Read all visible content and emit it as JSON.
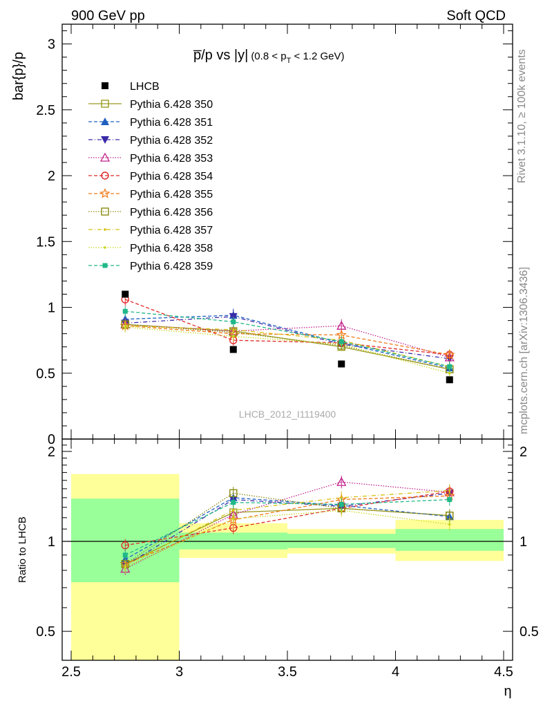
{
  "header": {
    "left": "900 GeV pp",
    "right": "Soft QCD"
  },
  "side_labels": {
    "rivet": "Rivet 3.1.10, ≥ 100k events",
    "mcplots": "mcplots.cern.ch [arXiv:1306.3436]"
  },
  "colors": {
    "LHCB": "#000000",
    "350": "#9a9a20",
    "351": "#1f5fc0",
    "352": "#3a2aa8",
    "353": "#c0208a",
    "354": "#e02828",
    "355": "#f07a18",
    "356": "#8a8a10",
    "357": "#d8c010",
    "358": "#c8d820",
    "359": "#20b888",
    "band_inner": "#99ff99",
    "band_outer": "#ffff99"
  },
  "chart_data": [
    {
      "type": "line",
      "panel": "main",
      "title": "p̅/p vs |y|",
      "title_sub": "(0.8 < p",
      "title_sub_T": "T",
      "title_sub_end": " < 1.2 GeV)",
      "ylabel": "bar{p}/p",
      "watermark": "LHCB_2012_I1119400",
      "xlim": [
        2.5,
        4.5
      ],
      "ylim": [
        0,
        3.15
      ],
      "yticks": [
        0,
        0.5,
        1,
        1.5,
        2,
        2.5,
        3
      ],
      "ytick_labels": [
        "0",
        "0.5",
        "1",
        "1.5",
        "2",
        "2.5",
        "3"
      ],
      "legend_position": "top-left",
      "x": [
        2.75,
        3.25,
        3.75,
        4.25
      ],
      "data": {
        "name": "LHCB",
        "values": [
          1.1,
          0.68,
          0.57,
          0.45
        ],
        "errors": [
          0.01,
          0.01,
          0.01,
          0.01
        ]
      },
      "series": [
        {
          "name": "Pythia 6.428 350",
          "key": "350",
          "marker": "square-open",
          "dash": "solid",
          "values": [
            0.87,
            0.82,
            0.7,
            0.53
          ],
          "errors": [
            0.04,
            0.04,
            0.03,
            0.03
          ]
        },
        {
          "name": "Pythia 6.428 351",
          "key": "351",
          "marker": "triangle-up",
          "dash": "dash",
          "values": [
            0.91,
            0.94,
            0.73,
            0.54
          ],
          "errors": [
            0.04,
            0.05,
            0.04,
            0.04
          ]
        },
        {
          "name": "Pythia 6.428 352",
          "key": "352",
          "marker": "triangle-down",
          "dash": "dashdot",
          "values": [
            0.88,
            0.93,
            0.72,
            0.61
          ],
          "errors": [
            0.04,
            0.05,
            0.04,
            0.04
          ]
        },
        {
          "name": "Pythia 6.428 353",
          "key": "353",
          "marker": "triangle-up-open",
          "dash": "dot",
          "values": [
            0.87,
            0.82,
            0.86,
            0.62
          ],
          "errors": [
            0.05,
            0.05,
            0.05,
            0.05
          ]
        },
        {
          "name": "Pythia 6.428 354",
          "key": "354",
          "marker": "circle-open",
          "dash": "dash",
          "values": [
            1.06,
            0.75,
            0.73,
            0.64
          ],
          "errors": [
            0.05,
            0.04,
            0.04,
            0.04
          ]
        },
        {
          "name": "Pythia 6.428 355",
          "key": "355",
          "marker": "star-open",
          "dash": "dash",
          "values": [
            0.86,
            0.8,
            0.79,
            0.64
          ],
          "errors": [
            0.04,
            0.04,
            0.04,
            0.04
          ]
        },
        {
          "name": "Pythia 6.428 356",
          "key": "356",
          "marker": "square-open",
          "dash": "dot",
          "values": [
            0.87,
            0.81,
            0.71,
            0.53
          ],
          "errors": [
            0.04,
            0.04,
            0.03,
            0.03
          ]
        },
        {
          "name": "Pythia 6.428 357",
          "key": "357",
          "marker": "dot",
          "dash": "dashdot",
          "values": [
            0.86,
            0.83,
            0.75,
            0.55
          ],
          "errors": [
            0.04,
            0.04,
            0.04,
            0.04
          ]
        },
        {
          "name": "Pythia 6.428 358",
          "key": "358",
          "marker": "dot",
          "dash": "dot",
          "values": [
            0.85,
            0.78,
            0.72,
            0.5
          ],
          "errors": [
            0.04,
            0.04,
            0.03,
            0.03
          ]
        },
        {
          "name": "Pythia 6.428 359",
          "key": "359",
          "marker": "square-filled",
          "dash": "dash",
          "values": [
            0.97,
            0.89,
            0.74,
            0.55
          ],
          "errors": [
            0.04,
            0.04,
            0.04,
            0.04
          ]
        }
      ]
    },
    {
      "type": "line",
      "panel": "ratio",
      "ylabel": "Ratio to LHCB",
      "xlabel": "η",
      "xlim": [
        2.5,
        4.5
      ],
      "ylim": [
        0.4,
        2.2
      ],
      "log_y": true,
      "xticks": [
        2.5,
        3,
        3.5,
        4,
        4.5
      ],
      "xtick_labels": [
        "2.5",
        "3",
        "3.5",
        "4",
        "4.5"
      ],
      "yticks": [
        0.5,
        1,
        2
      ],
      "ytick_labels": [
        "0.5",
        "1",
        "2"
      ],
      "x": [
        2.75,
        3.25,
        3.75,
        4.25
      ],
      "bins": [
        [
          2.5,
          3.0
        ],
        [
          3.0,
          3.5
        ],
        [
          3.5,
          4.0
        ],
        [
          4.0,
          4.5
        ]
      ],
      "band_inner": [
        [
          0.73,
          1.39
        ],
        [
          0.94,
          1.07
        ],
        [
          0.95,
          1.06
        ],
        [
          0.93,
          1.1
        ]
      ],
      "band_outer": [
        [
          0.4,
          1.68
        ],
        [
          0.88,
          1.15
        ],
        [
          0.91,
          1.1
        ],
        [
          0.86,
          1.18
        ]
      ],
      "series": [
        {
          "key": "350",
          "values": [
            0.84,
            1.25,
            1.29,
            1.22
          ]
        },
        {
          "key": "351",
          "values": [
            0.87,
            1.4,
            1.32,
            1.21
          ]
        },
        {
          "key": "352",
          "values": [
            0.83,
            1.38,
            1.31,
            1.45
          ]
        },
        {
          "key": "353",
          "values": [
            0.81,
            1.23,
            1.58,
            1.46
          ]
        },
        {
          "key": "354",
          "values": [
            0.97,
            1.11,
            1.29,
            1.47
          ]
        },
        {
          "key": "355",
          "values": [
            0.84,
            1.18,
            1.38,
            1.42
          ]
        },
        {
          "key": "356",
          "values": [
            0.84,
            1.45,
            1.29,
            1.22
          ]
        },
        {
          "key": "357",
          "values": [
            0.83,
            1.27,
            1.4,
            1.48
          ]
        },
        {
          "key": "358",
          "values": [
            0.82,
            1.19,
            1.27,
            1.14
          ]
        },
        {
          "key": "359",
          "values": [
            0.9,
            1.35,
            1.33,
            1.38
          ]
        }
      ]
    }
  ]
}
